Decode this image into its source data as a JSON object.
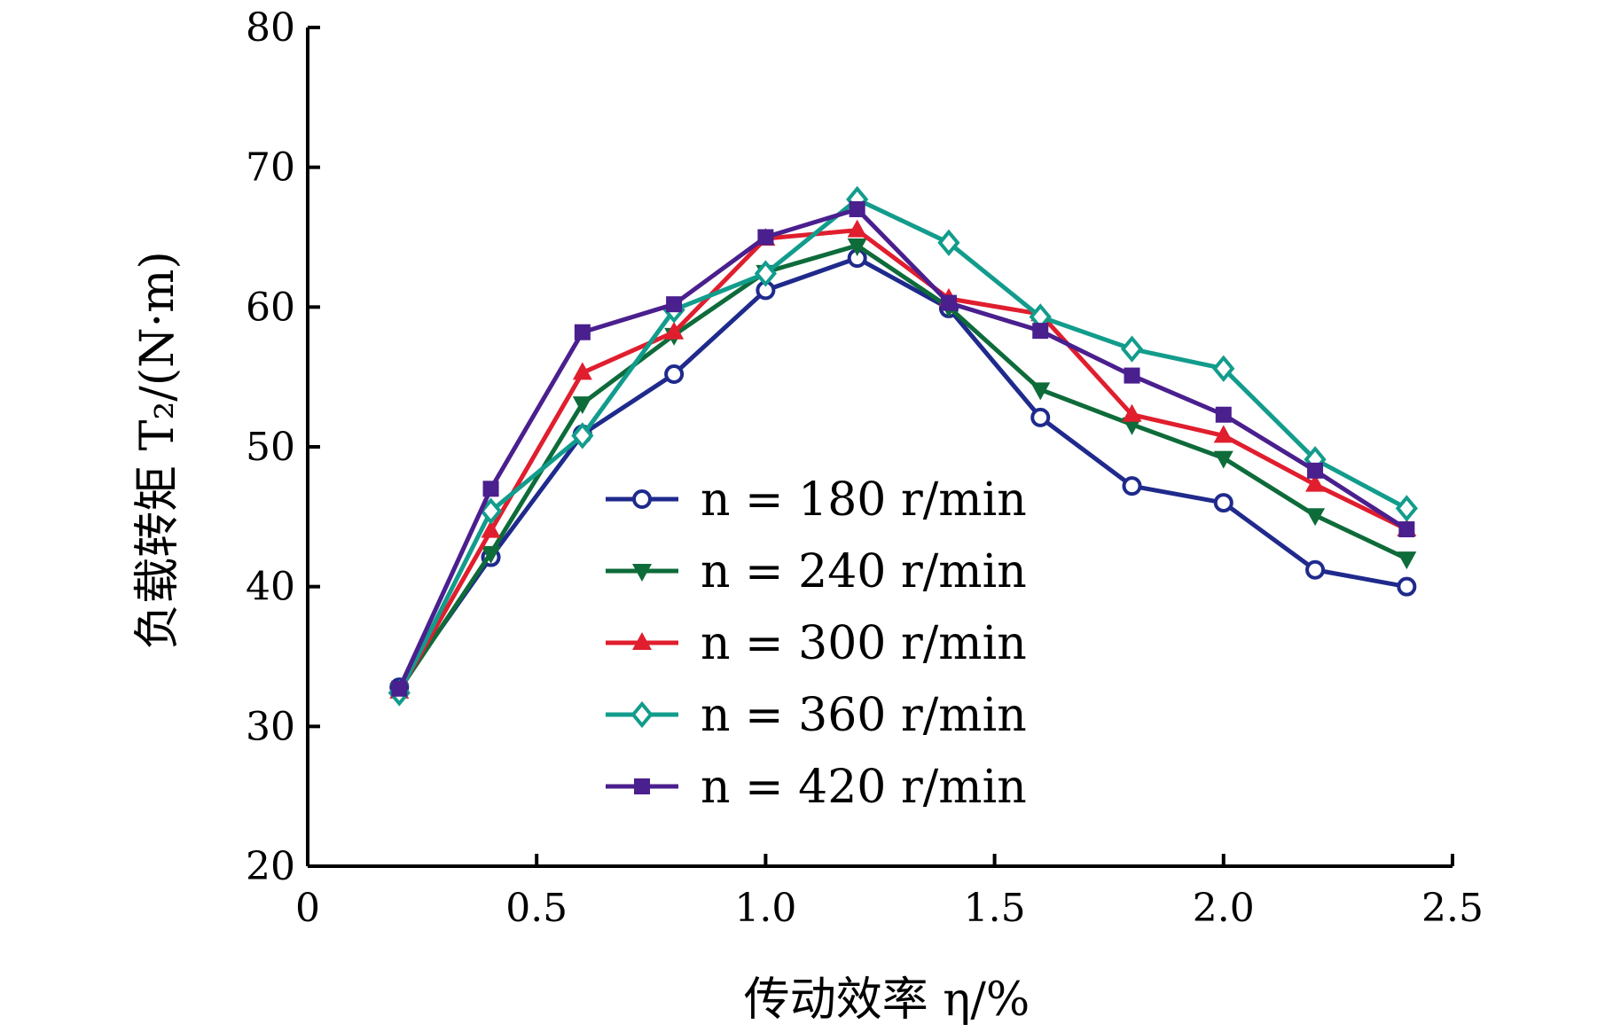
{
  "chart_data": {
    "type": "line",
    "title": "",
    "xlabel": "传动效率 η/%",
    "ylabel": "负载转矩 T₂/(N·m)",
    "xlim": [
      0,
      2.5
    ],
    "ylim": [
      20,
      80
    ],
    "xticks": [
      0,
      0.5,
      1.0,
      1.5,
      2.0,
      2.5
    ],
    "xtick_labels": [
      "0",
      "0.5",
      "1.0",
      "1.5",
      "2.0",
      "2.5"
    ],
    "yticks": [
      20,
      30,
      40,
      50,
      60,
      70,
      80
    ],
    "ytick_labels": [
      "20",
      "30",
      "40",
      "50",
      "60",
      "70",
      "80"
    ],
    "grid": false,
    "legend_position": "center",
    "x": [
      0.2,
      0.4,
      0.6,
      0.8,
      1.0,
      1.2,
      1.4,
      1.6,
      1.8,
      2.0,
      2.2,
      2.4
    ],
    "series": [
      {
        "name": "n = 180 r/min",
        "color": "#1f2a8c",
        "marker": "circle",
        "values": [
          32.8,
          42.1,
          50.9,
          55.2,
          61.2,
          63.5,
          59.9,
          52.1,
          47.2,
          46.0,
          41.2,
          40.0
        ]
      },
      {
        "name": "n = 240 r/min",
        "color": "#0e6b3a",
        "marker": "triangle-down",
        "values": [
          32.6,
          42.4,
          53.1,
          58.0,
          62.5,
          64.4,
          60.0,
          54.1,
          51.6,
          49.2,
          45.1,
          42.0
        ]
      },
      {
        "name": "n = 300 r/min",
        "color": "#e01e2e",
        "marker": "triangle-up",
        "values": [
          32.5,
          44.0,
          55.3,
          58.2,
          64.9,
          65.5,
          60.6,
          59.5,
          52.3,
          50.8,
          47.3,
          44.1
        ]
      },
      {
        "name": "n = 360 r/min",
        "color": "#129c8c",
        "marker": "diamond",
        "values": [
          32.4,
          45.4,
          50.8,
          59.8,
          62.4,
          67.7,
          64.6,
          59.3,
          57.0,
          55.6,
          49.1,
          45.6
        ]
      },
      {
        "name": "n = 420 r/min",
        "color": "#4a1f8e",
        "marker": "square",
        "values": [
          32.7,
          47.0,
          58.2,
          60.2,
          65.0,
          67.0,
          60.3,
          58.3,
          55.1,
          52.3,
          48.3,
          44.1
        ]
      }
    ]
  }
}
